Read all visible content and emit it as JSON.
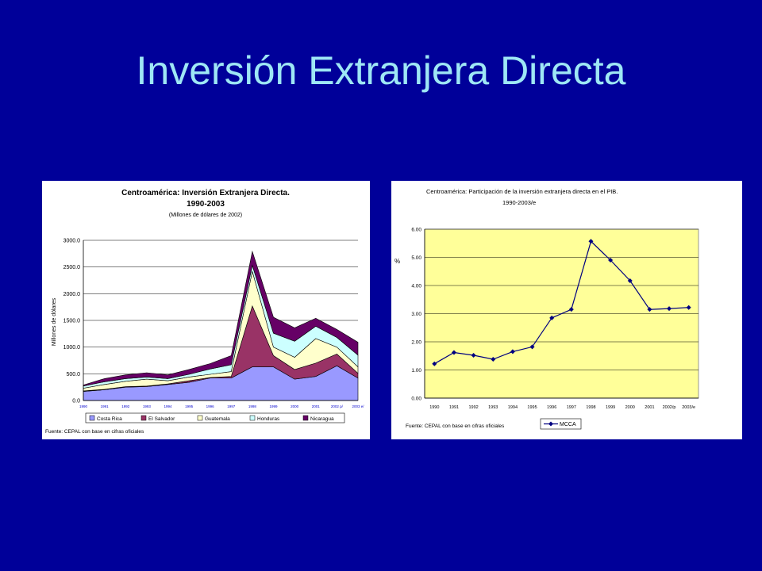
{
  "slide": {
    "title": "Inversión Extranjera Directa"
  },
  "chart_data": [
    {
      "type": "area",
      "stacked": true,
      "title": "Centroamérica: Inversión Extranjera Directa.",
      "subtitle": "1990-2003",
      "subtitle2": "(Millones de dólares de 2002)",
      "ylabel": "Millones de dólares",
      "xlabel": "",
      "categories": [
        "1990",
        "1991",
        "1992",
        "1993",
        "1994",
        "1995",
        "1996",
        "1997",
        "1998",
        "1999",
        "2000",
        "2001",
        "2002 p/",
        "2003 e/"
      ],
      "ylim": [
        0,
        3000
      ],
      "yticks": [
        "0.0",
        "500.0",
        "1000.0",
        "1500.0",
        "2000.0",
        "2500.0",
        "3000.0"
      ],
      "grid": true,
      "legend_position": "bottom",
      "series": [
        {
          "name": "Costa Rica",
          "color": "#9999ff",
          "values": [
            170,
            200,
            250,
            260,
            300,
            340,
            420,
            420,
            630,
            630,
            400,
            450,
            650,
            420
          ]
        },
        {
          "name": "El Salvador",
          "color": "#993366",
          "values": [
            10,
            10,
            10,
            10,
            10,
            30,
            10,
            30,
            1140,
            210,
            180,
            250,
            220,
            90
          ]
        },
        {
          "name": "Guatemala",
          "color": "#ffffcc",
          "values": [
            50,
            90,
            100,
            130,
            60,
            70,
            60,
            90,
            650,
            160,
            230,
            460,
            130,
            120
          ]
        },
        {
          "name": "Honduras",
          "color": "#ccffff",
          "values": [
            40,
            50,
            50,
            40,
            40,
            50,
            100,
            130,
            110,
            260,
            300,
            230,
            180,
            220
          ]
        },
        {
          "name": "Nicaragua",
          "color": "#660066",
          "values": [
            20,
            60,
            70,
            80,
            70,
            90,
            100,
            170,
            260,
            300,
            250,
            150,
            150,
            240
          ]
        }
      ],
      "source": "Fuente: CEPAL con base en cifras oficiales"
    },
    {
      "type": "line",
      "title": "Centroamérica: Participación de la inversión extranjera directa en el PIB.",
      "subtitle": "1990-2003/e",
      "ylabel": "%",
      "xlabel": "",
      "categories": [
        "1990",
        "1991",
        "1992",
        "1993",
        "1994",
        "1995",
        "1996",
        "1997",
        "1998",
        "1999",
        "2000",
        "2001",
        "2002/p",
        "2003/e"
      ],
      "ylim": [
        0,
        6
      ],
      "yticks": [
        "0.00",
        "1.00",
        "2.00",
        "3.00",
        "4.00",
        "5.00",
        "6.00"
      ],
      "grid": true,
      "plot_background": "#ffff99",
      "legend_position": "bottom",
      "series": [
        {
          "name": "MCCA",
          "color": "#000080",
          "values": [
            1.22,
            1.62,
            1.52,
            1.38,
            1.65,
            1.82,
            2.85,
            3.15,
            5.57,
            4.9,
            4.17,
            3.15,
            3.18,
            3.22
          ]
        }
      ],
      "source": "Fuente: CEPAL con base en cifras oficiales"
    }
  ]
}
